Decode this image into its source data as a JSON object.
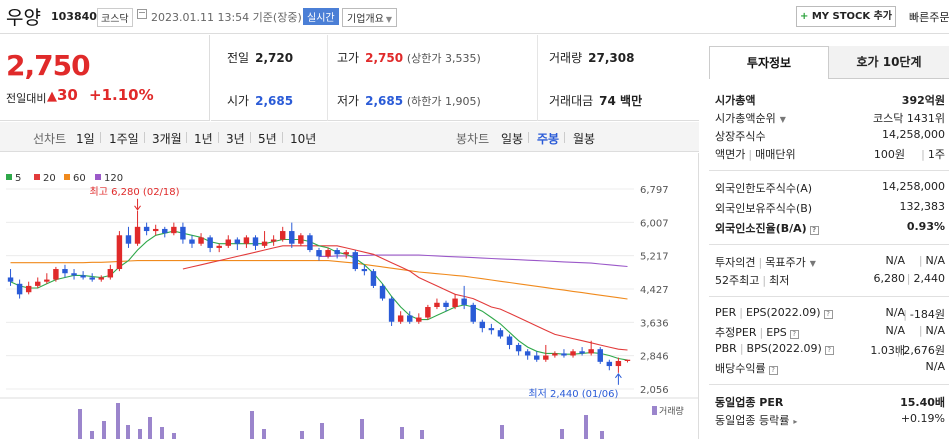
{
  "header": {
    "stock_name": "우양",
    "stock_code": "103840",
    "market": "코스닥",
    "datetime": "2023.01.11 13:54 기준(장중)",
    "realtime_badge": "실시간",
    "overview_label": "기업개요",
    "mystock_label": "MY STOCK 추가",
    "quick_order_label": "빠른주문"
  },
  "price": {
    "current": "2,750",
    "change_label": "전일대비",
    "change": "30",
    "rate": "+1.10%"
  },
  "quotes": {
    "prev_close_label": "전일",
    "prev_close": "2,720",
    "high_label": "고가",
    "high": "2,750",
    "upper_limit": "(상한가 3,535)",
    "volume_label": "거래량",
    "volume": "27,308",
    "open_label": "시가",
    "open": "2,685",
    "low_label": "저가",
    "low": "2,685",
    "lower_limit": "(하한가 1,905)",
    "amount_label": "거래대금",
    "amount": "74 백만"
  },
  "tabs": {
    "line_chart": "선차트",
    "periods": [
      "1일",
      "1주일",
      "3개월",
      "1년",
      "3년",
      "5년",
      "10년"
    ],
    "candle_chart": "봉차트",
    "candles": [
      "일봉",
      "주봉",
      "월봉"
    ],
    "selected_candle": 1
  },
  "chart_data": {
    "type": "candlestick",
    "legend": [
      {
        "name": "5",
        "color": "#2fa84a"
      },
      {
        "name": "20",
        "color": "#e23b3b"
      },
      {
        "name": "60",
        "color": "#f08a1d"
      },
      {
        "name": "120",
        "color": "#9b59c9"
      }
    ],
    "y_ticks": [
      "6,797",
      "6,007",
      "5,217",
      "4,427",
      "3,636",
      "2,846",
      "2,056"
    ],
    "ylim": [
      2056,
      6797
    ],
    "annotations": {
      "high": "최고 6,280 (02/18)",
      "low": "최저 2,440 (01/06)"
    },
    "volume_label": "거래량",
    "candles": [
      [
        4700,
        4600,
        4900,
        4500
      ],
      [
        4550,
        4300,
        4650,
        4200
      ],
      [
        4350,
        4500,
        4600,
        4300
      ],
      [
        4500,
        4600,
        4700,
        4450
      ],
      [
        4600,
        4650,
        4800,
        4550
      ],
      [
        4650,
        4900,
        4950,
        4600
      ],
      [
        4900,
        4800,
        5000,
        4700
      ],
      [
        4800,
        4750,
        4900,
        4650
      ],
      [
        4750,
        4700,
        4850,
        4650
      ],
      [
        4700,
        4650,
        4800,
        4600
      ],
      [
        4650,
        4700,
        4750,
        4600
      ],
      [
        4700,
        4900,
        5000,
        4650
      ],
      [
        4900,
        5700,
        5800,
        4850
      ],
      [
        5700,
        5500,
        5900,
        5400
      ],
      [
        5500,
        5900,
        6280,
        5450
      ],
      [
        5900,
        5800,
        6000,
        5700
      ],
      [
        5800,
        5850,
        5950,
        5700
      ],
      [
        5850,
        5750,
        5900,
        5650
      ],
      [
        5750,
        5900,
        6000,
        5700
      ],
      [
        5900,
        5600,
        6000,
        5500
      ],
      [
        5600,
        5500,
        5700,
        5400
      ],
      [
        5500,
        5650,
        5750,
        5450
      ],
      [
        5650,
        5400,
        5700,
        5300
      ],
      [
        5400,
        5450,
        5500,
        5300
      ],
      [
        5450,
        5600,
        5700,
        5400
      ],
      [
        5600,
        5500,
        5650,
        5350
      ],
      [
        5500,
        5650,
        5700,
        5400
      ],
      [
        5650,
        5450,
        5700,
        5350
      ],
      [
        5450,
        5550,
        5800,
        5400
      ],
      [
        5550,
        5600,
        5700,
        5450
      ],
      [
        5600,
        5800,
        5900,
        5550
      ],
      [
        5800,
        5500,
        6000,
        5400
      ],
      [
        5500,
        5700,
        5750,
        5450
      ],
      [
        5700,
        5350,
        5750,
        5300
      ],
      [
        5350,
        5200,
        5400,
        5100
      ],
      [
        5200,
        5350,
        5400,
        5150
      ],
      [
        5350,
        5250,
        5400,
        5150
      ],
      [
        5250,
        5300,
        5350,
        5150
      ],
      [
        5300,
        4900,
        5350,
        4850
      ],
      [
        4900,
        4850,
        5000,
        4750
      ],
      [
        4850,
        4500,
        4900,
        4450
      ],
      [
        4500,
        4200,
        4550,
        4150
      ],
      [
        4200,
        3650,
        4250,
        3550
      ],
      [
        3650,
        3800,
        3900,
        3600
      ],
      [
        3800,
        3650,
        3900,
        3600
      ],
      [
        3650,
        3750,
        3850,
        3600
      ],
      [
        3750,
        4000,
        4050,
        3700
      ],
      [
        4000,
        4100,
        4200,
        3950
      ],
      [
        4100,
        4000,
        4150,
        3900
      ],
      [
        4000,
        4200,
        4300,
        3950
      ],
      [
        4200,
        4050,
        4500,
        3950
      ],
      [
        4050,
        3650,
        4100,
        3600
      ],
      [
        3650,
        3500,
        3700,
        3400
      ],
      [
        3500,
        3450,
        3600,
        3350
      ],
      [
        3450,
        3300,
        3500,
        3250
      ],
      [
        3300,
        3100,
        3350,
        3000
      ],
      [
        3100,
        2950,
        3150,
        2850
      ],
      [
        2950,
        2850,
        3000,
        2750
      ],
      [
        2850,
        2750,
        2950,
        2700
      ],
      [
        2750,
        2850,
        3100,
        2700
      ],
      [
        2850,
        2900,
        2950,
        2800
      ],
      [
        2900,
        2850,
        3000,
        2800
      ],
      [
        2850,
        2950,
        3000,
        2800
      ],
      [
        2950,
        2900,
        3050,
        2850
      ],
      [
        2900,
        3000,
        3200,
        2850
      ],
      [
        3000,
        2700,
        3050,
        2650
      ],
      [
        2700,
        2600,
        2750,
        2500
      ],
      [
        2600,
        2720,
        2800,
        2440
      ],
      [
        2720,
        2750,
        2750,
        2685
      ]
    ],
    "ma5": [
      4600,
      4500,
      4450,
      4450,
      4550,
      4650,
      4700,
      4750,
      4750,
      4720,
      4700,
      4750,
      4950,
      5100,
      5350,
      5550,
      5700,
      5750,
      5800,
      5750,
      5700,
      5650,
      5550,
      5500,
      5500,
      5500,
      5500,
      5500,
      5500,
      5550,
      5600,
      5600,
      5600,
      5550,
      5450,
      5400,
      5300,
      5250,
      5150,
      5000,
      4800,
      4550,
      4250,
      4000,
      3800,
      3700,
      3700,
      3800,
      3900,
      4000,
      4050,
      4000,
      3900,
      3750,
      3600,
      3400,
      3200,
      3050,
      2950,
      2900,
      2900,
      2880,
      2880,
      2900,
      2920,
      2900,
      2850,
      2780,
      2740
    ],
    "ma20": [
      null,
      null,
      null,
      null,
      null,
      null,
      null,
      null,
      null,
      null,
      null,
      null,
      null,
      null,
      null,
      null,
      null,
      null,
      null,
      4900,
      4950,
      5000,
      5050,
      5100,
      5150,
      5200,
      5250,
      5300,
      5350,
      5400,
      5450,
      5450,
      5450,
      5450,
      5450,
      5450,
      5450,
      5400,
      5350,
      5300,
      5250,
      5150,
      5050,
      4950,
      4850,
      4700,
      4600,
      4500,
      4400,
      4300,
      4250,
      4200,
      4100,
      4000,
      3950,
      3850,
      3750,
      3650,
      3550,
      3450,
      3350,
      3300,
      3250,
      3200,
      3150,
      3100,
      3050,
      3000,
      2980
    ],
    "ma60": [
      5050,
      5050,
      5050,
      5050,
      5050,
      5050,
      5050,
      5050,
      5050,
      5060,
      5060,
      5070,
      5080,
      5090,
      5100,
      5100,
      5100,
      5100,
      5100,
      5100,
      5100,
      5100,
      5100,
      5100,
      5100,
      5100,
      5100,
      5100,
      5100,
      5100,
      5100,
      5100,
      5100,
      5100,
      5100,
      5100,
      5080,
      5060,
      5040,
      5010,
      4980,
      4950,
      4920,
      4890,
      4860,
      4830,
      4810,
      4790,
      4770,
      4750,
      4730,
      4700,
      4670,
      4640,
      4610,
      4580,
      4550,
      4520,
      4490,
      4460,
      4430,
      4400,
      4370,
      4340,
      4310,
      4280,
      4250,
      4220,
      4190
    ],
    "ma120": [
      null,
      null,
      null,
      null,
      null,
      null,
      null,
      null,
      null,
      null,
      null,
      null,
      null,
      null,
      null,
      null,
      null,
      null,
      null,
      null,
      null,
      null,
      null,
      null,
      null,
      null,
      null,
      null,
      null,
      null,
      null,
      null,
      null,
      null,
      5200,
      5200,
      5210,
      5210,
      5220,
      5220,
      5230,
      5230,
      5230,
      5230,
      5230,
      5230,
      5220,
      5210,
      5200,
      5190,
      5180,
      5170,
      5160,
      5150,
      5140,
      5130,
      5120,
      5110,
      5100,
      5090,
      5080,
      5070,
      5060,
      5050,
      5040,
      5020,
      5000,
      4980,
      4960
    ],
    "volume": [
      0,
      0,
      0,
      0,
      0,
      0,
      0,
      0,
      0,
      0,
      0,
      0,
      0,
      0,
      0,
      0,
      0,
      0,
      0,
      0,
      0,
      0,
      0,
      0,
      0,
      0,
      0,
      0,
      0,
      0,
      0,
      0,
      0,
      0,
      0,
      0,
      0,
      0,
      0,
      0,
      0,
      0,
      0,
      0,
      0,
      0,
      0,
      0,
      0,
      0,
      0,
      0,
      0,
      0,
      0,
      0,
      0,
      0,
      0,
      0,
      0,
      0,
      0,
      0,
      0,
      0,
      0,
      0,
      0
    ]
  },
  "invest_panel": {
    "tab_info": "투자정보",
    "tab_quote": "호가 10단계",
    "rows": [
      {
        "label": "시가총액",
        "value": "392억원"
      },
      {
        "label": "시가총액순위",
        "value": "코스닥 1431위"
      },
      {
        "label": "상장주식수",
        "value": "14,258,000"
      },
      {
        "label": "액면가",
        "label2": "매매단위",
        "value": "100원",
        "value2": "1주"
      },
      {
        "label": "외국인한도주식수(A)",
        "value": "14,258,000"
      },
      {
        "label": "외국인보유주식수(B)",
        "value": "132,383"
      },
      {
        "label": "외국인소진율(B/A)",
        "value": "0.93%"
      },
      {
        "label": "투자의견",
        "label2": "목표주가",
        "value": "N/A",
        "value2": "N/A"
      },
      {
        "label": "52주최고",
        "label2": "최저",
        "value": "6,280",
        "value2": "2,440"
      },
      {
        "label": "PER",
        "label2": "EPS(2022.09)",
        "value": "N/A",
        "value2": "-184원"
      },
      {
        "label": "추정PER",
        "label2": "EPS",
        "value": "N/A",
        "value2": "N/A"
      },
      {
        "label": "PBR",
        "label2": "BPS(2022.09)",
        "value": "1.03배",
        "value2": "2,676원"
      },
      {
        "label": "배당수익률",
        "value": "N/A"
      },
      {
        "label": "동일업종 PER",
        "value": "15.40배"
      },
      {
        "label": "동일업종 등락률",
        "value": "+0.19%"
      }
    ]
  }
}
